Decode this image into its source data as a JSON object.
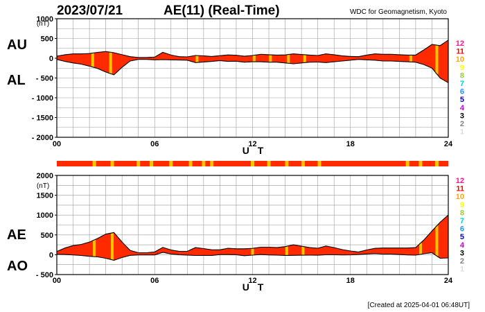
{
  "header": {
    "date": "2023/07/21",
    "title": "AE(11) (Real-Time)",
    "source": "WDC for Geomagnetism, Kyoto"
  },
  "footer": {
    "created": "[Created at 2025-04-01 06:48UT]"
  },
  "legend": {
    "labels": [
      "12",
      "11",
      "10",
      "9",
      "8",
      "7",
      "6",
      "5",
      "4",
      "3",
      "2",
      "1"
    ],
    "colors": [
      "#ff1493",
      "#ff0000",
      "#ffa500",
      "#ffff00",
      "#9acd32",
      "#00ced1",
      "#1e90ff",
      "#0000cd",
      "#cc00cc",
      "#000000",
      "#808080",
      "#dddddd"
    ]
  },
  "colors": {
    "fill": "#ff2a00",
    "station_mark": "#f5c400",
    "line": "#000000"
  },
  "chart_data": [
    {
      "type": "area",
      "series_labels": [
        "AU",
        "AL"
      ],
      "unit": "(nT)",
      "xlabel": "U T",
      "x_ticks": [
        "00",
        "06",
        "12",
        "18",
        "24"
      ],
      "xlim": [
        0,
        24
      ],
      "ylim": [
        -2000,
        1000
      ],
      "y_ticks": [
        "1000",
        "500",
        "0",
        "- 500",
        "- 1000",
        "- 1500",
        "- 2000"
      ],
      "y_tick_values": [
        1000,
        500,
        0,
        -500,
        -1000,
        -1500,
        -2000
      ],
      "x": [
        0,
        0.5,
        1,
        1.5,
        2,
        2.5,
        3,
        3.5,
        4,
        4.5,
        5,
        5.5,
        6,
        6.5,
        7,
        7.5,
        8,
        8.5,
        9,
        9.5,
        10,
        10.5,
        11,
        11.5,
        12,
        12.5,
        13,
        13.5,
        14,
        14.5,
        15,
        15.5,
        16,
        16.5,
        17,
        17.5,
        18,
        18.5,
        19,
        19.5,
        20,
        20.5,
        21,
        21.5,
        22,
        22.5,
        23,
        23.5,
        24
      ],
      "series": [
        {
          "name": "AU",
          "values": [
            50,
            90,
            110,
            110,
            120,
            150,
            170,
            140,
            90,
            40,
            20,
            20,
            30,
            150,
            80,
            40,
            35,
            70,
            60,
            45,
            65,
            85,
            75,
            50,
            70,
            100,
            90,
            80,
            85,
            110,
            95,
            80,
            70,
            110,
            90,
            60,
            45,
            40,
            80,
            110,
            100,
            100,
            90,
            80,
            80,
            210,
            350,
            320,
            460
          ]
        },
        {
          "name": "AL",
          "values": [
            -30,
            -80,
            -120,
            -150,
            -200,
            -260,
            -350,
            -420,
            -230,
            -70,
            -30,
            -30,
            -40,
            -35,
            -40,
            -45,
            -50,
            -110,
            -95,
            -80,
            -60,
            -80,
            -75,
            -100,
            -90,
            -90,
            -100,
            -100,
            -120,
            -140,
            -120,
            -100,
            -95,
            -110,
            -90,
            -70,
            -50,
            -30,
            -40,
            -50,
            -70,
            -70,
            -80,
            -90,
            -100,
            -160,
            -250,
            -500,
            -620
          ]
        }
      ],
      "station_marks_ut": [
        2.2,
        3.3,
        8.6,
        12.1,
        13.1,
        14.2,
        15.2,
        21.7,
        23.3
      ]
    },
    {
      "type": "area",
      "series_labels": [
        "AE",
        "AO"
      ],
      "unit": "(nT)",
      "xlabel": "U T",
      "x_ticks": [
        "00",
        "06",
        "12",
        "18",
        "24"
      ],
      "xlim": [
        0,
        24
      ],
      "ylim": [
        -500,
        2000
      ],
      "y_ticks": [
        "2000",
        "1500",
        "1000",
        "500",
        "0",
        "- 500"
      ],
      "y_tick_values": [
        2000,
        1500,
        1000,
        500,
        0,
        -500
      ],
      "x": [
        0,
        0.5,
        1,
        1.5,
        2,
        2.5,
        3,
        3.5,
        4,
        4.5,
        5,
        5.5,
        6,
        6.5,
        7,
        7.5,
        8,
        8.5,
        9,
        9.5,
        10,
        10.5,
        11,
        11.5,
        12,
        12.5,
        13,
        13.5,
        14,
        14.5,
        15,
        15.5,
        16,
        16.5,
        17,
        17.5,
        18,
        18.5,
        19,
        19.5,
        20,
        20.5,
        21,
        21.5,
        22,
        22.5,
        23,
        23.5,
        24
      ],
      "series": [
        {
          "name": "AE",
          "values": [
            80,
            170,
            230,
            260,
            320,
            410,
            520,
            560,
            320,
            110,
            50,
            50,
            70,
            185,
            120,
            85,
            85,
            180,
            155,
            125,
            125,
            165,
            150,
            150,
            160,
            190,
            190,
            180,
            205,
            250,
            215,
            180,
            165,
            220,
            180,
            130,
            95,
            70,
            120,
            160,
            170,
            170,
            170,
            170,
            180,
            370,
            600,
            820,
            1000
          ]
        },
        {
          "name": "AO",
          "values": [
            10,
            5,
            -5,
            -20,
            -40,
            -55,
            -90,
            -140,
            -70,
            -15,
            -5,
            -5,
            -5,
            60,
            20,
            0,
            -8,
            -20,
            -18,
            -18,
            3,
            3,
            0,
            -25,
            -10,
            5,
            -5,
            -10,
            -18,
            -15,
            -13,
            -10,
            -13,
            0,
            0,
            -5,
            -3,
            5,
            20,
            30,
            15,
            15,
            5,
            -5,
            -10,
            25,
            50,
            -90,
            -80
          ]
        }
      ],
      "station_bar_marks_ut": [
        2.3,
        3.4,
        5.0,
        5.8,
        7.0,
        8.2,
        9.0,
        9.5,
        12.0,
        13.0,
        14.1,
        15.1,
        16.1,
        21.5,
        22.3,
        23.3
      ],
      "station_marks_ut": [
        2.3,
        3.4,
        12.0,
        14.1,
        15.1,
        22.3,
        23.3
      ]
    }
  ]
}
